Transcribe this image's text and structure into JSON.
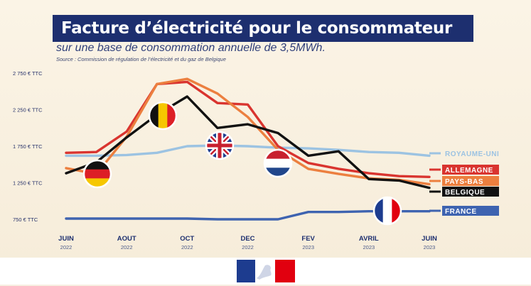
{
  "title": "Facture d’électricité pour le consommateur",
  "subtitle": "sur une base de consommation annuelle de 3,5MWh.",
  "source": "Source : Commission de régulation de l’électricité et du gaz de Belgique",
  "colors": {
    "royaume_uni": "#9cc3e2",
    "allemagne": "#d9342f",
    "pays_bas": "#ec7f3f",
    "belgique": "#111111",
    "france": "#3e63b0",
    "title_bg": "#1d2f6f"
  },
  "chart_data": {
    "type": "line",
    "x": [
      "JUIN 2022",
      "JUIL 2022",
      "AOUT 2022",
      "SEPT 2022",
      "OCT 2022",
      "NOV 2022",
      "DEC 2022",
      "JANV 2023",
      "FEV 2023",
      "MARS 2023",
      "AVRIL 2023",
      "MAI 2023",
      "JUIN 2023"
    ],
    "x_tick_labels": [
      {
        "month": "JUIN",
        "year": "2022"
      },
      {
        "month": "AOUT",
        "year": "2022"
      },
      {
        "month": "OCT",
        "year": "2022"
      },
      {
        "month": "DEC",
        "year": "2022"
      },
      {
        "month": "FEV",
        "year": "2023"
      },
      {
        "month": "AVRIL",
        "year": "2023"
      },
      {
        "month": "JUIN",
        "year": "2023"
      }
    ],
    "y_ticks": [
      "2 750 € TTC",
      "2 250 € TTC",
      "1 750 € TTC",
      "1 250 € TTC",
      "750 € TTC"
    ],
    "ylim": [
      750,
      2750
    ],
    "series": [
      {
        "name": "ROYAUME-UNI",
        "color": "#9cc3e2",
        "values": [
          1620,
          1620,
          1630,
          1660,
          1750,
          1760,
          1750,
          1730,
          1720,
          1700,
          1670,
          1660,
          1620
        ]
      },
      {
        "name": "ALLEMAGNE",
        "color": "#d9342f",
        "values": [
          1660,
          1670,
          1950,
          2600,
          2630,
          2340,
          2320,
          1750,
          1520,
          1440,
          1380,
          1340,
          1330
        ]
      },
      {
        "name": "PAYS-BAS",
        "color": "#ec7f3f",
        "values": [
          1450,
          1370,
          1880,
          2600,
          2670,
          2470,
          2150,
          1700,
          1440,
          1370,
          1310,
          1290,
          1230
        ]
      },
      {
        "name": "BELGIQUE",
        "color": "#111111",
        "values": [
          1380,
          1530,
          1870,
          2180,
          2430,
          2000,
          2050,
          1930,
          1620,
          1680,
          1300,
          1280,
          1180
        ]
      },
      {
        "name": "FRANCE",
        "color": "#3e63b0",
        "values": [
          760,
          760,
          760,
          760,
          760,
          750,
          750,
          750,
          850,
          850,
          860,
          860,
          860
        ]
      }
    ],
    "legend_placement": "right"
  }
}
